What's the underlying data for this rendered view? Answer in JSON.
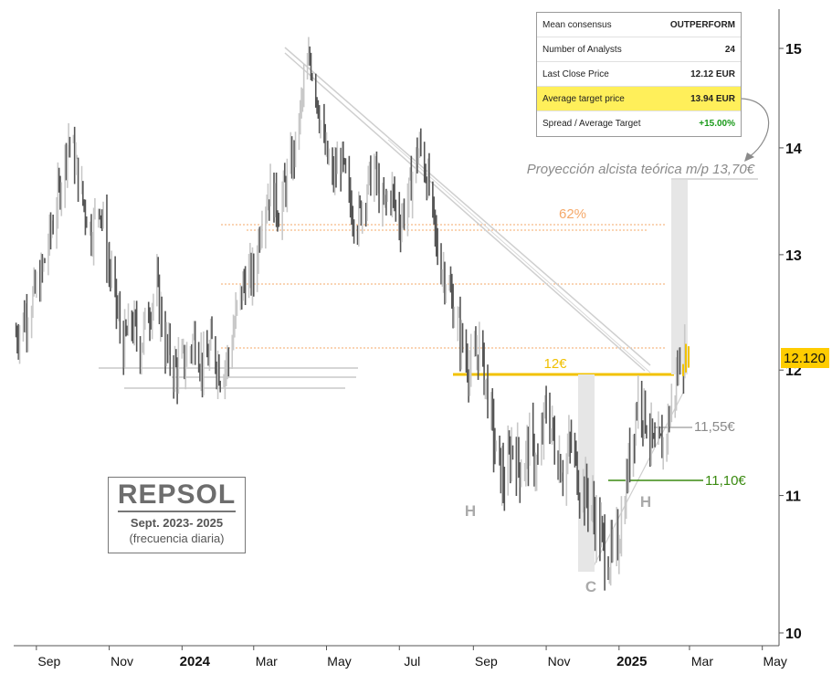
{
  "consensus": {
    "rows": [
      {
        "label": "Mean consensus",
        "value": "OUTPERFORM"
      },
      {
        "label": "Number of Analysts",
        "value": "24"
      },
      {
        "label": "Last Close Price",
        "value": "12.12 EUR"
      },
      {
        "label": "Average target price",
        "value": "13.94 EUR",
        "highlight": true
      },
      {
        "label": "Spread / Average Target",
        "value": "+15.00%",
        "positive": true
      }
    ]
  },
  "title_box": {
    "name": "REPSOL",
    "period": "Sept. 2023- 2025",
    "frequency": "(frecuencia diaria)"
  },
  "chart_data": {
    "type": "line",
    "title": "",
    "xlabel": "",
    "ylabel": "",
    "ylim": [
      10,
      15.2
    ],
    "y_scale": "log",
    "y_ticks": [
      "15",
      "14",
      "13",
      "12",
      "11",
      "10"
    ],
    "y_tick_values": [
      15,
      14,
      13,
      12,
      11,
      10
    ],
    "x_ticks": [
      "Sep",
      "Nov",
      "2024",
      "Mar",
      "May",
      "Jul",
      "Sep",
      "Nov",
      "2025",
      "Mar",
      "May"
    ],
    "x_tick_dates": [
      "2023-09-01",
      "2023-11-01",
      "2024-01-01",
      "2024-03-01",
      "2024-05-01",
      "2024-07-01",
      "2024-09-01",
      "2024-11-01",
      "2025-01-01",
      "2025-03-01",
      "2025-05-01"
    ],
    "x_range": [
      "2023-08-13",
      "2025-05-15"
    ],
    "last_price": {
      "label": "12.120",
      "value": 12.12,
      "color": "#ffcc00"
    },
    "series": [
      {
        "color": "#4a4a4a",
        "points": [
          [
            "2023-08-15",
            12.3
          ],
          [
            "2023-08-25",
            12.5
          ],
          [
            "2023-09-05",
            12.8
          ],
          [
            "2023-09-15",
            13.3
          ],
          [
            "2023-09-22",
            13.7
          ],
          [
            "2023-09-28",
            14.1
          ],
          [
            "2023-10-03",
            13.9
          ],
          [
            "2023-10-10",
            13.5
          ],
          [
            "2023-10-17",
            13.2
          ],
          [
            "2023-10-24",
            13.5
          ],
          [
            "2023-10-30",
            13.0
          ],
          [
            "2023-11-06",
            12.6
          ],
          [
            "2023-11-13",
            12.2
          ],
          [
            "2023-11-20",
            12.4
          ],
          [
            "2023-11-27",
            12.2
          ],
          [
            "2023-12-04",
            12.5
          ],
          [
            "2023-12-11",
            12.7
          ],
          [
            "2023-12-18",
            12.2
          ],
          [
            "2023-12-27",
            12.0
          ],
          [
            "2024-01-05",
            12.1
          ],
          [
            "2024-01-12",
            12.3
          ],
          [
            "2024-01-19",
            12.0
          ],
          [
            "2024-01-26",
            12.2
          ],
          [
            "2024-02-02",
            12.0
          ],
          [
            "2024-02-09",
            12.1
          ],
          [
            "2024-02-16",
            12.5
          ],
          [
            "2024-02-23",
            12.8
          ],
          [
            "2024-03-01",
            12.8
          ],
          [
            "2024-03-08",
            13.4
          ],
          [
            "2024-03-15",
            13.6
          ],
          [
            "2024-03-22",
            13.4
          ],
          [
            "2024-03-29",
            13.7
          ],
          [
            "2024-04-05",
            14.0
          ],
          [
            "2024-04-12",
            14.6
          ],
          [
            "2024-04-17",
            14.9
          ],
          [
            "2024-04-22",
            14.6
          ],
          [
            "2024-04-29",
            14.0
          ],
          [
            "2024-05-06",
            13.7
          ],
          [
            "2024-05-13",
            13.9
          ],
          [
            "2024-05-20",
            13.5
          ],
          [
            "2024-05-27",
            13.3
          ],
          [
            "2024-06-03",
            13.6
          ],
          [
            "2024-06-10",
            13.8
          ],
          [
            "2024-06-17",
            13.4
          ],
          [
            "2024-06-24",
            13.6
          ],
          [
            "2024-07-01",
            13.3
          ],
          [
            "2024-07-08",
            13.5
          ],
          [
            "2024-07-15",
            13.9
          ],
          [
            "2024-07-19",
            14.0
          ],
          [
            "2024-07-26",
            13.6
          ],
          [
            "2024-08-02",
            13.0
          ],
          [
            "2024-08-09",
            12.8
          ],
          [
            "2024-08-16",
            12.5
          ],
          [
            "2024-08-23",
            12.2
          ],
          [
            "2024-08-30",
            12.0
          ],
          [
            "2024-09-06",
            12.2
          ],
          [
            "2024-09-13",
            11.8
          ],
          [
            "2024-09-20",
            11.3
          ],
          [
            "2024-09-27",
            11.1
          ],
          [
            "2024-10-04",
            11.4
          ],
          [
            "2024-10-11",
            11.2
          ],
          [
            "2024-10-18",
            11.4
          ],
          [
            "2024-10-25",
            11.2
          ],
          [
            "2024-11-01",
            11.7
          ],
          [
            "2024-11-08",
            11.4
          ],
          [
            "2024-11-15",
            11.2
          ],
          [
            "2024-11-22",
            11.4
          ],
          [
            "2024-11-29",
            11.1
          ],
          [
            "2024-12-06",
            11.0
          ],
          [
            "2024-12-13",
            10.8
          ],
          [
            "2024-12-20",
            10.6
          ],
          [
            "2024-12-27",
            10.5
          ],
          [
            "2025-01-03",
            10.8
          ],
          [
            "2025-01-10",
            11.3
          ],
          [
            "2025-01-17",
            11.8
          ],
          [
            "2025-01-24",
            11.6
          ],
          [
            "2025-01-31",
            11.3
          ],
          [
            "2025-02-07",
            11.4
          ],
          [
            "2025-02-14",
            11.7
          ],
          [
            "2025-02-21",
            12.1
          ],
          [
            "2025-02-26",
            12.12
          ]
        ]
      }
    ],
    "annotations": [
      {
        "label": "Proyección alcista teórica m/p 13,70€",
        "value": 13.7,
        "color": "#8a8a8a"
      },
      {
        "label": "62%",
        "value": 13.3,
        "color": "#f5a96a"
      },
      {
        "label": "12€",
        "value": 12.0,
        "color": "#f0c000"
      },
      {
        "label": "11,55€",
        "value": 11.55,
        "color": "#8a8a8a"
      },
      {
        "label": "11,10€",
        "value": 11.1,
        "color": "#3a8a10"
      },
      {
        "label": "H",
        "value": 10.95,
        "date": "2024-09-20",
        "color": "#aaaaaa"
      },
      {
        "label": "C",
        "value": 10.3,
        "date": "2024-12-24",
        "color": "#aaaaaa"
      },
      {
        "label": "H",
        "value": 10.95,
        "date": "2025-02-05",
        "color": "#aaaaaa"
      }
    ]
  }
}
